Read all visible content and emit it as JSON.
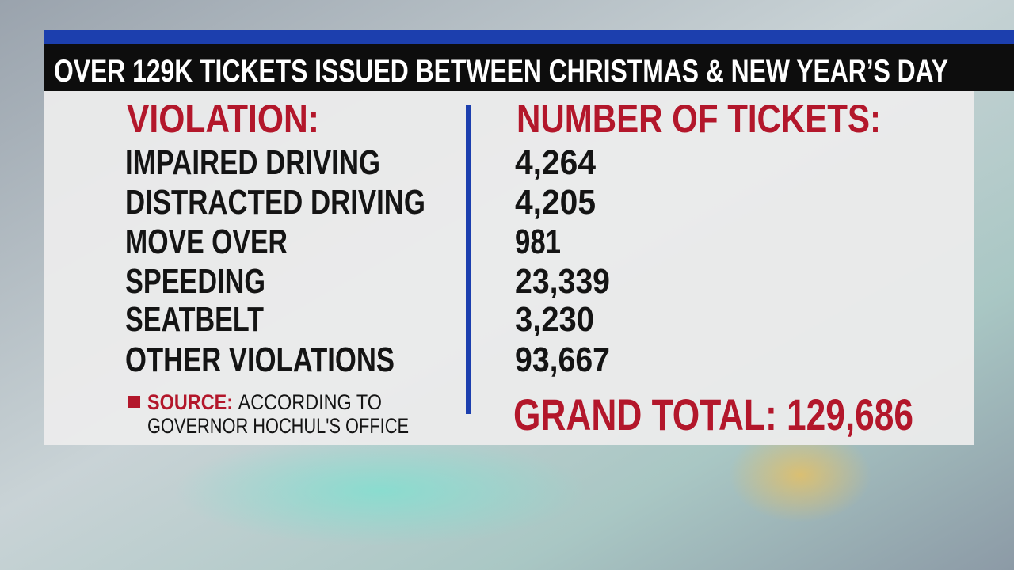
{
  "header": {
    "title": "OVER 129K TICKETS ISSUED BETWEEN CHRISTMAS & NEW YEAR’S DAY"
  },
  "table": {
    "headers": [
      "VIOLATION:",
      "NUMBER OF TICKETS:"
    ],
    "rows": [
      [
        "IMPAIRED DRIVING",
        "4,264"
      ],
      [
        "DISTRACTED DRIVING",
        "4,205"
      ],
      [
        "MOVE OVER",
        "981"
      ],
      [
        "SPEEDING",
        "23,339"
      ],
      [
        "SEATBELT",
        "3,230"
      ],
      [
        "OTHER VIOLATIONS",
        "93,667"
      ]
    ],
    "total": "GRAND TOTAL: 129,686"
  },
  "source": {
    "label": "SOURCE:",
    "lines": [
      "ACCORDING TO",
      "GOVERNOR HOCHUL'S OFFICE"
    ]
  }
}
